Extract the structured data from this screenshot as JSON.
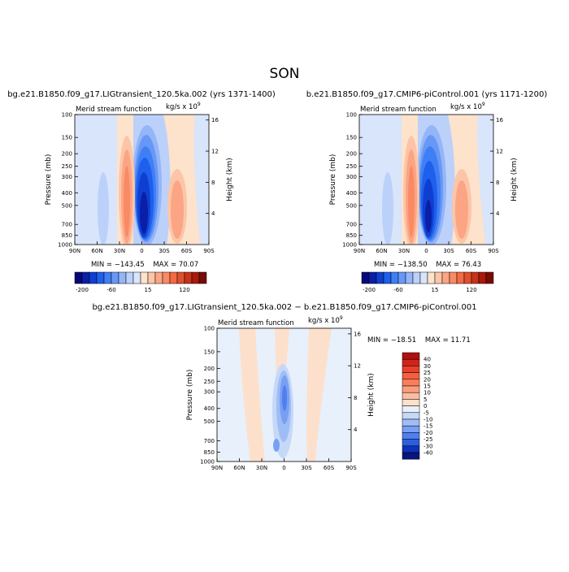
{
  "page": {
    "season": "SON"
  },
  "colors": {
    "neg": [
      "#08087a",
      "#0a1fa8",
      "#0f3fd0",
      "#1f5fee",
      "#3f7ff5",
      "#6898f6",
      "#94b6f8",
      "#bcd1fa",
      "#d8e5fb"
    ],
    "pos": [
      "#fde2cc",
      "#fcc5a8",
      "#fba584",
      "#fa8a64",
      "#f36a45",
      "#e0502c",
      "#c83218",
      "#a81a0c",
      "#7a0a04"
    ],
    "diff_levels": [
      {
        "label": "40",
        "color": "#b01010"
      },
      {
        "label": "30",
        "color": "#d02418"
      },
      {
        "label": "25",
        "color": "#e8402a"
      },
      {
        "label": "20",
        "color": "#f55f3f"
      },
      {
        "label": "15",
        "color": "#fa7e5c"
      },
      {
        "label": "10",
        "color": "#fb9d7c"
      },
      {
        "label": "5",
        "color": "#fcbc9f"
      },
      {
        "label": "0",
        "color": "#fde0cc"
      },
      {
        "label": "-5",
        "color": "#e8f0fc"
      },
      {
        "label": "-10",
        "color": "#c6d8f8"
      },
      {
        "label": "-15",
        "color": "#9fbdf5"
      },
      {
        "label": "-20",
        "color": "#789ff2"
      },
      {
        "label": "-25",
        "color": "#4f7ff0"
      },
      {
        "label": "-30",
        "color": "#2a5fe0"
      },
      {
        "label": "-40",
        "color": "#1030b8"
      },
      {
        "label": "",
        "color": "#081480"
      }
    ]
  },
  "chart_data": [
    {
      "type": "heatmap",
      "title": "bg.e21.B1850.f09_g17.LIGtransient_120.5ka.002 (yrs 1371-1400)",
      "subtitle": "Merid stream function",
      "units": "kg/s x 10",
      "units_exp": "9",
      "xlabel": "",
      "ylabel": "Pressure (mb)",
      "y2label": "Height (km)",
      "x_ticks": [
        "90N",
        "60N",
        "30N",
        "0",
        "30S",
        "60S",
        "90S"
      ],
      "y_ticks": [
        "100",
        "150",
        "200",
        "250",
        "300",
        "400",
        "500",
        "700",
        "850",
        "1000"
      ],
      "y2_ticks": [
        "16",
        "12",
        "8",
        "4"
      ],
      "min_label": "MIN =",
      "min": "−143.45",
      "max_label": "MAX =",
      "max": "70.07",
      "colorbar_labels": [
        "-200",
        "-60",
        "15",
        "120"
      ]
    },
    {
      "type": "heatmap",
      "title": "b.e21.B1850.f09_g17.CMIP6-piControl.001 (yrs 1171-1200)",
      "subtitle": "Merid stream function",
      "units": "kg/s x 10",
      "units_exp": "9",
      "xlabel": "",
      "ylabel": "Pressure (mb)",
      "y2label": "Height (km)",
      "x_ticks": [
        "90N",
        "60N",
        "30N",
        "0",
        "30S",
        "60S",
        "90S"
      ],
      "y_ticks": [
        "100",
        "150",
        "200",
        "250",
        "300",
        "400",
        "500",
        "700",
        "850",
        "1000"
      ],
      "y2_ticks": [
        "16",
        "12",
        "8",
        "4"
      ],
      "min_label": "MIN =",
      "min": "−138.50",
      "max_label": "MAX =",
      "max": "76.43",
      "colorbar_labels": [
        "-200",
        "-60",
        "15",
        "120"
      ]
    },
    {
      "type": "heatmap",
      "title": "bg.e21.B1850.f09_g17.LIGtransient_120.5ka.002 − b.e21.B1850.f09_g17.CMIP6-piControl.001",
      "subtitle": "Merid stream function",
      "units": "kg/s x 10",
      "units_exp": "9",
      "xlabel": "",
      "ylabel": "Pressure (mb)",
      "y2label": "Height (km)",
      "x_ticks": [
        "90N",
        "60N",
        "30N",
        "0",
        "30S",
        "60S",
        "90S"
      ],
      "y_ticks": [
        "100",
        "150",
        "200",
        "250",
        "300",
        "400",
        "500",
        "700",
        "850",
        "1000"
      ],
      "y2_ticks": [
        "16",
        "12",
        "8",
        "4"
      ],
      "min_label": "MIN =",
      "min": "−18.51",
      "max_label": "MAX =",
      "max": "11.71"
    }
  ]
}
